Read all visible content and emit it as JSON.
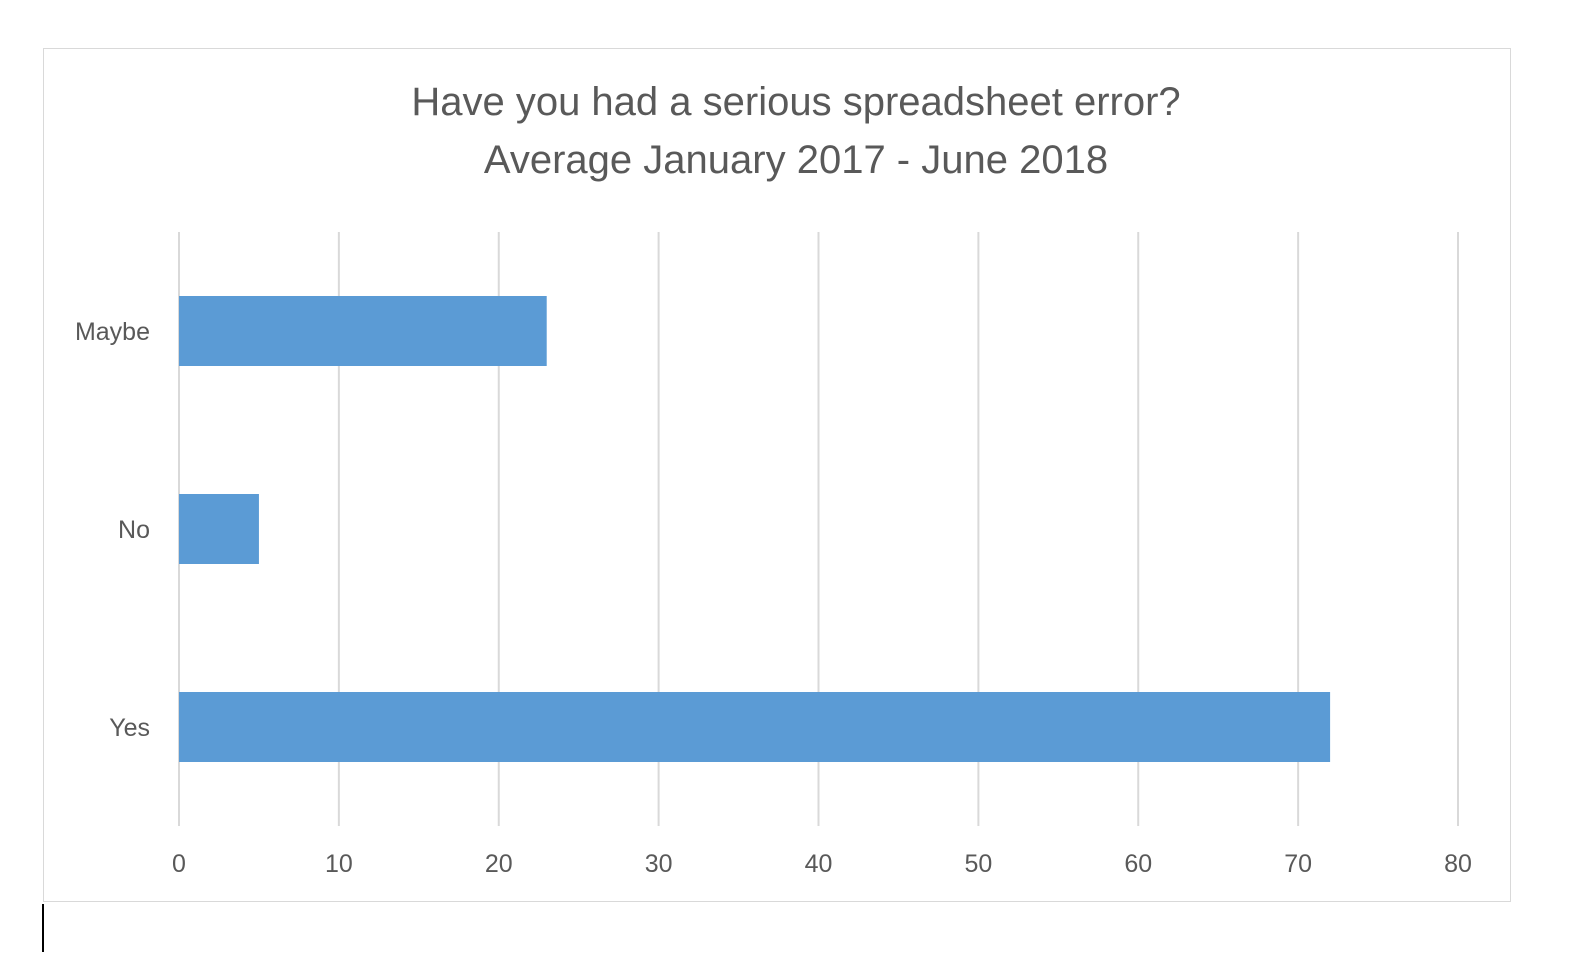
{
  "chart_data": {
    "type": "bar",
    "orientation": "horizontal",
    "title_lines": [
      "Have you had a serious spreadsheet error?",
      "Average January 2017 - June 2018"
    ],
    "categories": [
      "Maybe",
      "No",
      "Yes"
    ],
    "values": [
      23,
      5,
      72
    ],
    "xlim": [
      0,
      80
    ],
    "xticks": [
      0,
      10,
      20,
      30,
      40,
      50,
      60,
      70,
      80
    ],
    "grid": true,
    "legend": "none",
    "bar_color": "#5b9bd5"
  }
}
